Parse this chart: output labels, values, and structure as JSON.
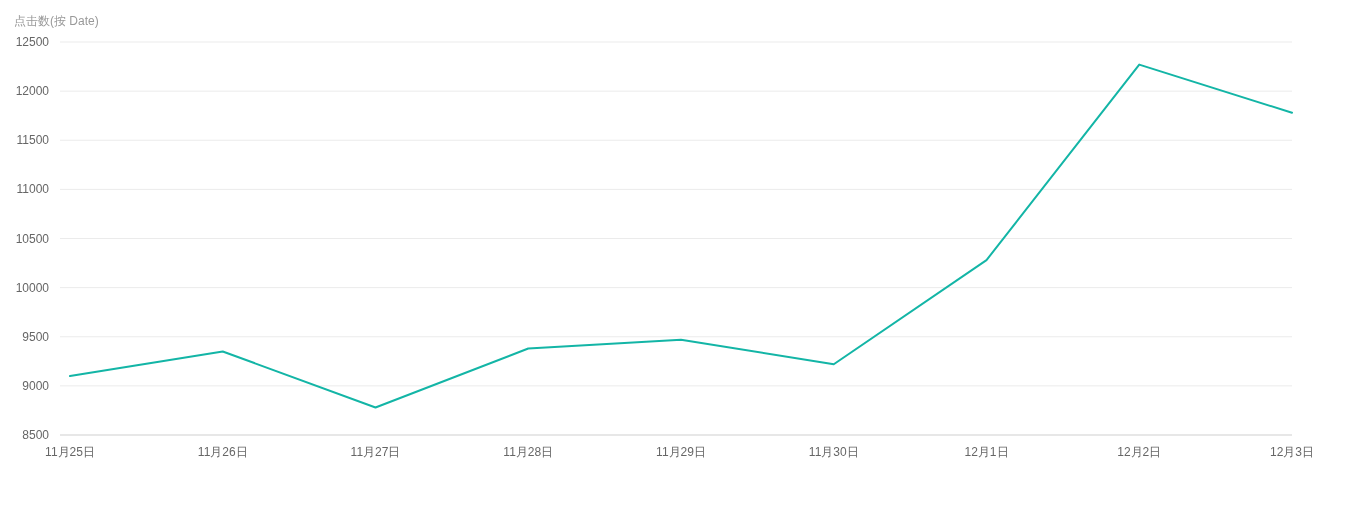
{
  "chart_data": {
    "type": "line",
    "ylabel": "点击数(按 Date)",
    "categories": [
      "11月25日",
      "11月26日",
      "11月27日",
      "11月28日",
      "11月29日",
      "11月30日",
      "12月1日",
      "12月2日",
      "12月3日"
    ],
    "series": [
      {
        "color": "#13b5a6",
        "values": [
          9100,
          9350,
          8780,
          9380,
          9470,
          9220,
          10280,
          12270,
          11780
        ]
      }
    ],
    "ylim": [
      8500,
      12500
    ],
    "yticks": [
      8500,
      9000,
      9500,
      10000,
      10500,
      11000,
      11500,
      12000,
      12500
    ],
    "grid": "y",
    "marker": "none",
    "line_style": "solid"
  }
}
